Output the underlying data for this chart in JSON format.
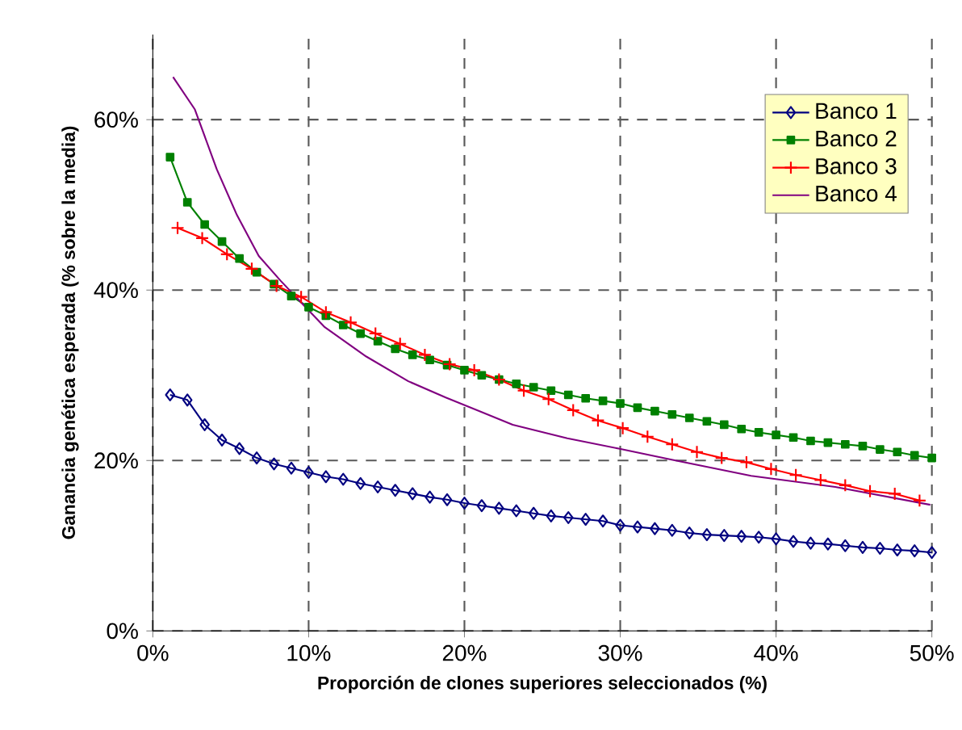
{
  "chart_data": {
    "type": "line",
    "xlabel": "Proporción de clones superiores seleccionados (%)",
    "ylabel": "Ganancia genética esperada (% sobre la media)",
    "x": [
      1.11,
      2.22,
      3.33,
      4.44,
      5.56,
      6.67,
      7.78,
      8.89,
      10,
      11.11,
      12.22,
      13.33,
      14.44,
      15.56,
      16.67,
      17.78,
      18.89,
      20,
      21.11,
      22.22,
      23.33,
      24.44,
      25.56,
      26.67,
      27.78,
      28.89,
      30,
      31.11,
      32.22,
      33.33,
      34.44,
      35.56,
      36.67,
      37.78,
      38.89,
      40,
      41.11,
      42.22,
      43.33,
      44.44,
      45.56,
      46.67,
      47.78,
      48.89,
      50
    ],
    "series": [
      {
        "name": "Banco 1",
        "color": "#000080",
        "marker": "diamond",
        "values": [
          27.7,
          27.1,
          24.2,
          22.4,
          21.4,
          20.3,
          19.6,
          19.1,
          18.6,
          18.1,
          17.8,
          17.3,
          16.9,
          16.5,
          16.1,
          15.7,
          15.4,
          15.0,
          14.7,
          14.4,
          14.1,
          13.8,
          13.5,
          13.3,
          13.1,
          12.9,
          12.4,
          12.2,
          12.0,
          11.8,
          11.5,
          11.3,
          11.2,
          11.1,
          11.0,
          10.8,
          10.5,
          10.3,
          10.2,
          10.0,
          9.8,
          9.7,
          9.5,
          9.4,
          9.2
        ]
      },
      {
        "name": "Banco 2",
        "color": "#008000",
        "marker": "square",
        "values": [
          55.6,
          50.3,
          47.7,
          45.7,
          43.7,
          42.1,
          40.7,
          39.3,
          38.0,
          37.0,
          35.9,
          34.9,
          34.0,
          33.1,
          32.4,
          31.8,
          31.2,
          30.6,
          30.0,
          29.5,
          29.0,
          28.6,
          28.2,
          27.7,
          27.3,
          27.0,
          26.7,
          26.2,
          25.8,
          25.4,
          25.0,
          24.6,
          24.2,
          23.7,
          23.3,
          23.0,
          22.7,
          22.3,
          22.1,
          21.9,
          21.7,
          21.3,
          21.0,
          20.6,
          20.3
        ]
      },
      {
        "name": "Banco 3",
        "color": "#ff0000",
        "marker": "cross",
        "x": [
          1.59,
          3.17,
          4.76,
          6.35,
          7.94,
          9.52,
          11.11,
          12.7,
          14.29,
          15.87,
          17.46,
          19.05,
          20.63,
          22.22,
          23.81,
          25.4,
          26.98,
          28.57,
          30.16,
          31.75,
          33.33,
          34.92,
          36.51,
          38.1,
          39.68,
          41.27,
          42.86,
          44.44,
          46.03,
          47.62,
          49.21
        ],
        "values": [
          47.3,
          46.1,
          44.2,
          42.5,
          40.5,
          39.2,
          37.4,
          36.2,
          34.9,
          33.7,
          32.4,
          31.3,
          30.6,
          29.5,
          28.2,
          27.2,
          25.9,
          24.7,
          23.8,
          22.8,
          21.9,
          21.0,
          20.3,
          19.8,
          19.0,
          18.3,
          17.7,
          17.1,
          16.4,
          16.1,
          15.3
        ]
      },
      {
        "name": "Banco 4",
        "color": "#800080",
        "marker": "none",
        "x": [
          1.3,
          2.7,
          4.1,
          5.4,
          6.8,
          8.2,
          9.7,
          11.0,
          13.7,
          16.4,
          18.8,
          23.1,
          26.6,
          29.9,
          33.3,
          38.4,
          43.8,
          49.9
        ],
        "values": [
          65.0,
          61.2,
          54.2,
          48.8,
          44.0,
          41.1,
          38.2,
          35.7,
          32.2,
          29.3,
          27.4,
          24.2,
          22.6,
          21.4,
          20.1,
          18.2,
          16.9,
          14.8
        ]
      }
    ],
    "xlim": [
      0,
      50
    ],
    "xticks": [
      {
        "value": 0,
        "label": "0%"
      },
      {
        "value": 10,
        "label": "10%"
      },
      {
        "value": 20,
        "label": "20%"
      },
      {
        "value": 30,
        "label": "30%"
      },
      {
        "value": 40,
        "label": "40%"
      },
      {
        "value": 50,
        "label": "50%"
      }
    ],
    "ylim": [
      0,
      70
    ],
    "yticks": [
      {
        "value": 0,
        "label": "0%"
      },
      {
        "value": 20,
        "label": "20%"
      },
      {
        "value": 40,
        "label": "40%"
      },
      {
        "value": 60,
        "label": "60%"
      }
    ],
    "grid": true,
    "legend": "top right"
  }
}
